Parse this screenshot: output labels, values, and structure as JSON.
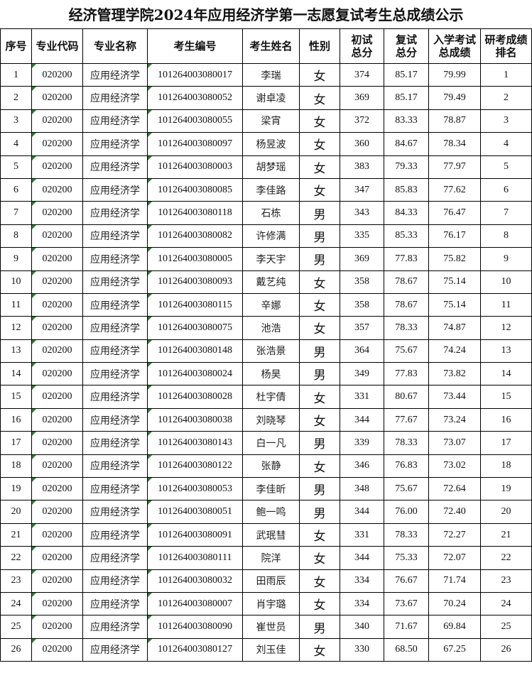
{
  "title": "经济管理学院2024年应用经济学第一志愿复试考生总成绩公示",
  "headers": [
    "序号",
    "专业代码",
    "专业名称",
    "考生编号",
    "考生姓名",
    "性别",
    "初试总分",
    "复试总分",
    "入学考试总成绩",
    "研考成绩排名"
  ],
  "rows": [
    [
      "1",
      "020200",
      "应用经济学",
      "101264003080017",
      "李瑞",
      "女",
      "374",
      "85.17",
      "79.99",
      "1"
    ],
    [
      "2",
      "020200",
      "应用经济学",
      "101264003080052",
      "谢卓凌",
      "女",
      "369",
      "85.17",
      "79.49",
      "2"
    ],
    [
      "3",
      "020200",
      "应用经济学",
      "101264003080055",
      "梁宵",
      "女",
      "372",
      "83.33",
      "78.87",
      "3"
    ],
    [
      "4",
      "020200",
      "应用经济学",
      "101264003080097",
      "杨昱波",
      "女",
      "360",
      "84.67",
      "78.34",
      "4"
    ],
    [
      "5",
      "020200",
      "应用经济学",
      "101264003080003",
      "胡梦瑶",
      "女",
      "383",
      "79.33",
      "77.97",
      "5"
    ],
    [
      "6",
      "020200",
      "应用经济学",
      "101264003080085",
      "李佳路",
      "女",
      "347",
      "85.83",
      "77.62",
      "6"
    ],
    [
      "7",
      "020200",
      "应用经济学",
      "101264003080118",
      "石栋",
      "男",
      "343",
      "84.33",
      "76.47",
      "7"
    ],
    [
      "8",
      "020200",
      "应用经济学",
      "101264003080082",
      "许修满",
      "男",
      "335",
      "85.33",
      "76.17",
      "8"
    ],
    [
      "9",
      "020200",
      "应用经济学",
      "101264003080005",
      "李天宇",
      "男",
      "369",
      "77.83",
      "75.82",
      "9"
    ],
    [
      "10",
      "020200",
      "应用经济学",
      "101264003080093",
      "戴艺纯",
      "女",
      "358",
      "78.67",
      "75.14",
      "10"
    ],
    [
      "11",
      "020200",
      "应用经济学",
      "101264003080115",
      "辛娜",
      "女",
      "358",
      "78.67",
      "75.14",
      "11"
    ],
    [
      "12",
      "020200",
      "应用经济学",
      "101264003080075",
      "池浩",
      "女",
      "357",
      "78.33",
      "74.87",
      "12"
    ],
    [
      "13",
      "020200",
      "应用经济学",
      "101264003080148",
      "张浩景",
      "男",
      "364",
      "75.67",
      "74.24",
      "13"
    ],
    [
      "14",
      "020200",
      "应用经济学",
      "101264003080024",
      "杨昊",
      "男",
      "349",
      "77.83",
      "73.82",
      "14"
    ],
    [
      "15",
      "020200",
      "应用经济学",
      "101264003080028",
      "杜宇倩",
      "女",
      "331",
      "80.67",
      "73.44",
      "15"
    ],
    [
      "16",
      "020200",
      "应用经济学",
      "101264003080038",
      "刘晓琴",
      "女",
      "344",
      "77.67",
      "73.24",
      "16"
    ],
    [
      "17",
      "020200",
      "应用经济学",
      "101264003080143",
      "白一凡",
      "男",
      "339",
      "78.33",
      "73.07",
      "17"
    ],
    [
      "18",
      "020200",
      "应用经济学",
      "101264003080122",
      "张静",
      "女",
      "346",
      "76.83",
      "73.02",
      "18"
    ],
    [
      "19",
      "020200",
      "应用经济学",
      "101264003080053",
      "李佳昕",
      "男",
      "348",
      "75.67",
      "72.64",
      "19"
    ],
    [
      "20",
      "020200",
      "应用经济学",
      "101264003080051",
      "鲍一鸣",
      "男",
      "344",
      "76.00",
      "72.40",
      "20"
    ],
    [
      "21",
      "020200",
      "应用经济学",
      "101264003080091",
      "武珉彗",
      "女",
      "331",
      "78.33",
      "72.27",
      "21"
    ],
    [
      "22",
      "020200",
      "应用经济学",
      "101264003080111",
      "院洋",
      "女",
      "344",
      "75.33",
      "72.07",
      "22"
    ],
    [
      "23",
      "020200",
      "应用经济学",
      "101264003080032",
      "田雨辰",
      "女",
      "334",
      "76.67",
      "71.74",
      "23"
    ],
    [
      "24",
      "020200",
      "应用经济学",
      "101264003080007",
      "肖宇璐",
      "女",
      "334",
      "73.67",
      "70.24",
      "24"
    ],
    [
      "25",
      "020200",
      "应用经济学",
      "101264003080090",
      "崔世员",
      "男",
      "340",
      "71.67",
      "69.84",
      "25"
    ],
    [
      "26",
      "020200",
      "应用经济学",
      "101264003080127",
      "刘玉佳",
      "女",
      "330",
      "68.50",
      "67.25",
      "26"
    ]
  ]
}
